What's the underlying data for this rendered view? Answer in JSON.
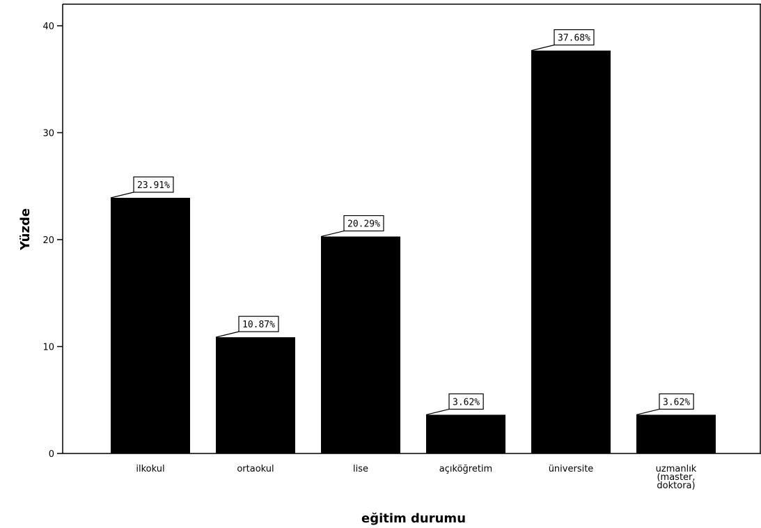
{
  "chart_data": {
    "type": "bar",
    "xlabel": "eğitim durumu",
    "ylabel": "Yüzde",
    "ylim": [
      0,
      42
    ],
    "yticks": [
      0,
      10,
      20,
      30,
      40
    ],
    "grid": false,
    "categories": [
      [
        "ilkokul"
      ],
      [
        "ortaokul"
      ],
      [
        "lise"
      ],
      [
        "açıköğretim"
      ],
      [
        "üniversite"
      ],
      [
        "uzmanlık",
        "(master,",
        "doktora)"
      ]
    ],
    "values": [
      23.91,
      10.87,
      20.29,
      3.62,
      37.68,
      3.62
    ],
    "data_labels": [
      "23.91%",
      "10.87%",
      "20.29%",
      "3.62%",
      "37.68%",
      "3.62%"
    ],
    "colors": {
      "bar": "#000000",
      "axis": "#000000",
      "label_box_fill": "#ffffff",
      "label_box_stroke": "#000000"
    }
  }
}
